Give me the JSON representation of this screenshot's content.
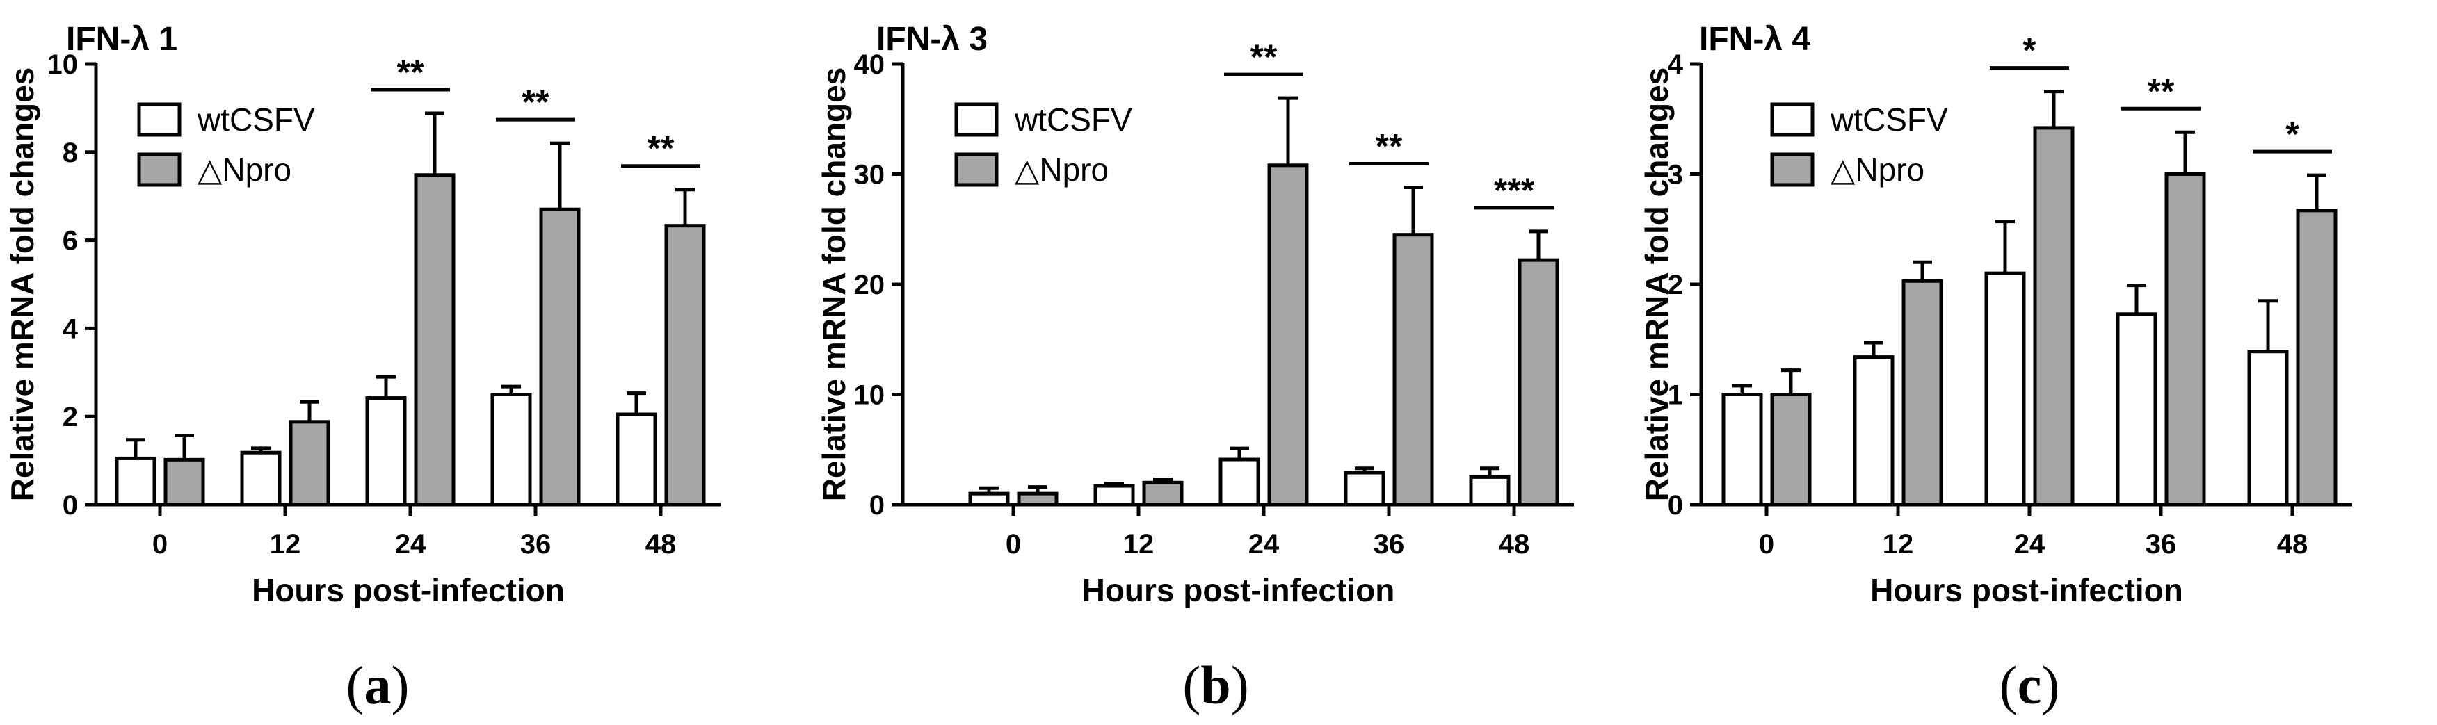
{
  "chart_data": [
    {
      "type": "bar",
      "title": "IFN-λ 1",
      "xlabel": "Hours post-infection",
      "ylabel": "Relative mRNA fold changes",
      "categories": [
        "0",
        "12",
        "24",
        "36",
        "48"
      ],
      "ylim": [
        0,
        10
      ],
      "yticks": [
        "0",
        "2",
        "4",
        "6",
        "8",
        "10"
      ],
      "legend_position": "top-left",
      "series": [
        {
          "name": "wtCSFV",
          "color": "#ffffff",
          "values": [
            1.05,
            1.18,
            2.42,
            2.5,
            2.05
          ],
          "errors": [
            0.42,
            0.1,
            0.48,
            0.18,
            0.48
          ]
        },
        {
          "name": "△Npro",
          "color": "#a6a6a6",
          "values": [
            1.02,
            1.88,
            7.48,
            6.7,
            6.33
          ],
          "errors": [
            0.55,
            0.45,
            1.4,
            1.5,
            0.82
          ]
        }
      ],
      "significance": [
        "",
        "",
        "**",
        "**",
        "**"
      ],
      "panel_label": "a"
    },
    {
      "type": "bar",
      "title": "IFN-λ 3",
      "xlabel": "Hours post-infection",
      "ylabel": "Relative mRNA fold changes",
      "categories": [
        "0",
        "12",
        "24",
        "36",
        "48"
      ],
      "ylim": [
        0,
        40
      ],
      "yticks": [
        "0",
        "10",
        "20",
        "30",
        "40"
      ],
      "legend_position": "top-left",
      "series": [
        {
          "name": "wtCSFV",
          "color": "#ffffff",
          "values": [
            1.0,
            1.7,
            4.1,
            2.9,
            2.5
          ],
          "errors": [
            0.5,
            0.2,
            1.0,
            0.4,
            0.8
          ]
        },
        {
          "name": "△Npro",
          "color": "#a6a6a6",
          "values": [
            1.0,
            2.0,
            30.8,
            24.5,
            22.2
          ],
          "errors": [
            0.6,
            0.3,
            6.1,
            4.3,
            2.6
          ]
        }
      ],
      "significance": [
        "",
        "",
        "**",
        "**",
        "***"
      ],
      "panel_label": "b"
    },
    {
      "type": "bar",
      "title": "IFN-λ 4",
      "xlabel": "Hours post-infection",
      "ylabel": "Relative mRNA fold changes",
      "categories": [
        "0",
        "12",
        "24",
        "36",
        "48"
      ],
      "ylim": [
        0,
        4
      ],
      "yticks": [
        "0",
        "1",
        "2",
        "3",
        "4"
      ],
      "legend_position": "top-left",
      "series": [
        {
          "name": "wtCSFV",
          "color": "#ffffff",
          "values": [
            1.0,
            1.34,
            2.1,
            1.73,
            1.39
          ],
          "errors": [
            0.08,
            0.13,
            0.47,
            0.26,
            0.46
          ]
        },
        {
          "name": "△Npro",
          "color": "#a6a6a6",
          "values": [
            1.0,
            2.03,
            3.42,
            3.0,
            2.67
          ],
          "errors": [
            0.22,
            0.17,
            0.33,
            0.38,
            0.32
          ]
        }
      ],
      "significance": [
        "",
        "",
        "*",
        "**",
        "*"
      ],
      "panel_label": "c"
    }
  ]
}
